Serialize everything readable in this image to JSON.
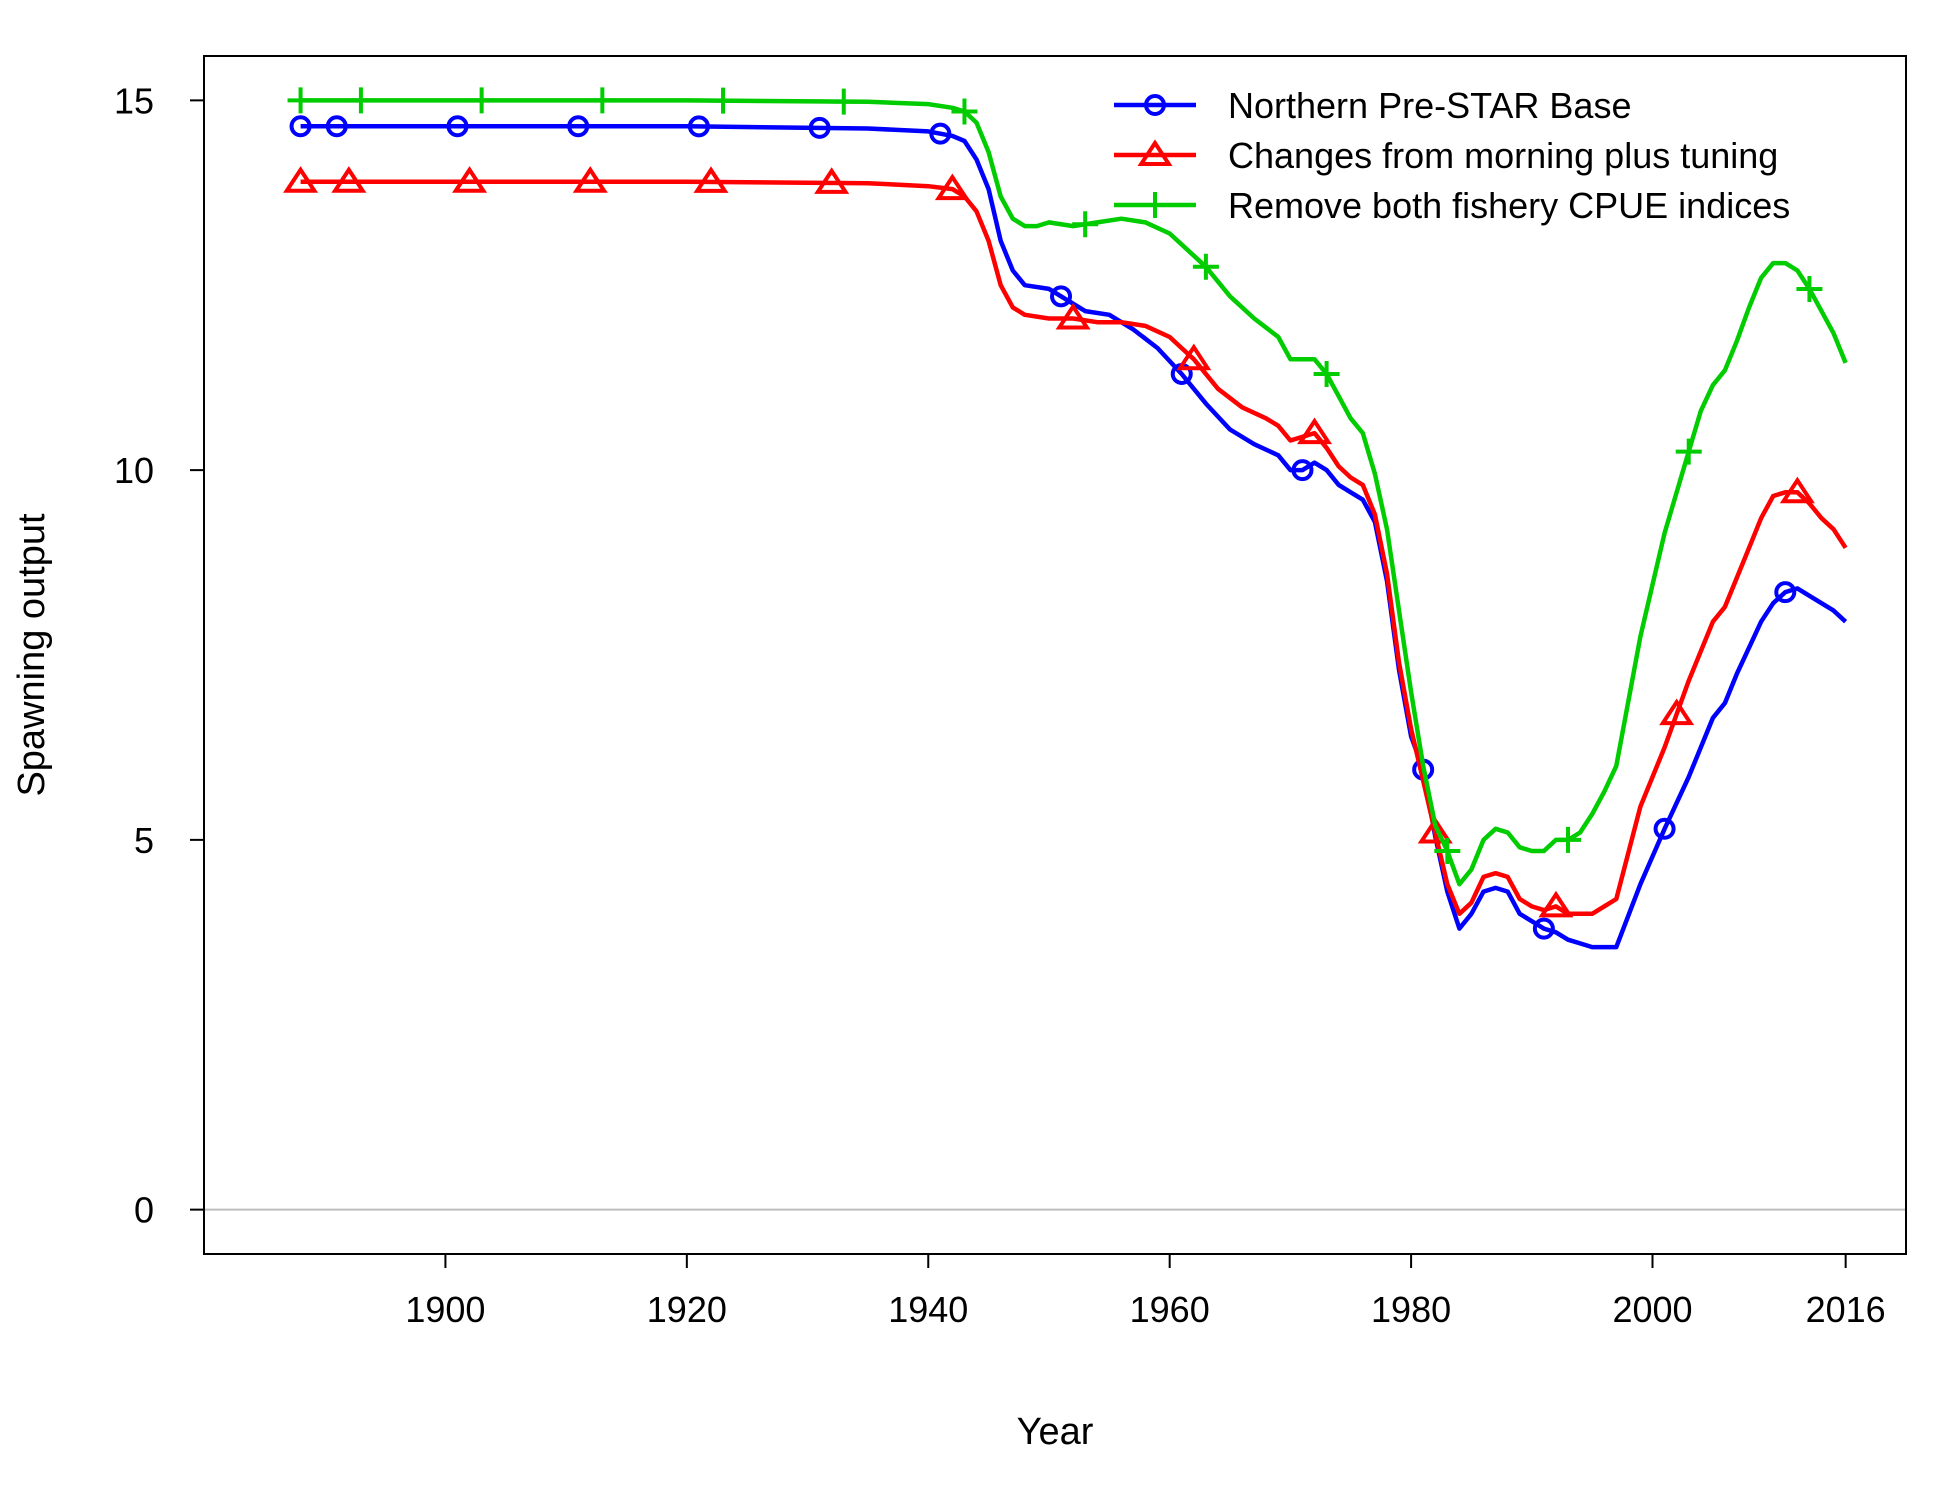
{
  "chart_data": {
    "type": "line",
    "xlabel": "Year",
    "ylabel": "Spawning output",
    "xlim": [
      1880,
      2021
    ],
    "ylim": [
      -0.6,
      15.6
    ],
    "xticks": [
      1900,
      1920,
      1940,
      1960,
      1980,
      2000,
      2016
    ],
    "yticks": [
      0,
      5,
      10,
      15
    ],
    "reference_line_y": 0,
    "legend_position": "top-right",
    "series": [
      {
        "name": "Northern Pre-STAR Base",
        "color": "#0000ff",
        "marker": "circle",
        "markers_at": [
          1888,
          1891,
          1901,
          1911,
          1921,
          1931,
          1941,
          1951,
          1961,
          1971,
          1981,
          1991,
          2001,
          2011
        ],
        "x": [
          1888,
          1900,
          1920,
          1935,
          1940,
          1942,
          1943,
          1944,
          1945,
          1946,
          1947,
          1948,
          1950,
          1951,
          1953,
          1955,
          1957,
          1959,
          1961,
          1963,
          1965,
          1967,
          1969,
          1970,
          1971,
          1972,
          1973,
          1974,
          1975,
          1976,
          1977,
          1978,
          1979,
          1980,
          1981,
          1982,
          1983,
          1984,
          1985,
          1986,
          1987,
          1988,
          1989,
          1990,
          1991,
          1992,
          1993,
          1994,
          1995,
          1996,
          1997,
          1999,
          2001,
          2003,
          2005,
          2006,
          2007,
          2008,
          2009,
          2010,
          2011,
          2012,
          2013,
          2014,
          2015,
          2016
        ],
        "values": [
          14.65,
          14.65,
          14.65,
          14.62,
          14.58,
          14.52,
          14.45,
          14.2,
          13.8,
          13.1,
          12.7,
          12.5,
          12.45,
          12.35,
          12.15,
          12.1,
          11.9,
          11.65,
          11.3,
          10.9,
          10.55,
          10.35,
          10.2,
          10.0,
          10.0,
          10.1,
          10.0,
          9.8,
          9.7,
          9.6,
          9.3,
          8.5,
          7.3,
          6.4,
          5.95,
          5.05,
          4.3,
          3.8,
          4.0,
          4.3,
          4.35,
          4.3,
          4.0,
          3.9,
          3.8,
          3.75,
          3.65,
          3.6,
          3.55,
          3.55,
          3.55,
          4.4,
          5.15,
          5.85,
          6.65,
          6.85,
          7.25,
          7.6,
          7.95,
          8.2,
          8.35,
          8.4,
          8.3,
          8.2,
          8.1,
          7.95
        ]
      },
      {
        "name": "Changes from morning plus tuning",
        "color": "#ff0000",
        "marker": "triangle",
        "markers_at": [
          1888,
          1892,
          1902,
          1912,
          1922,
          1932,
          1942,
          1952,
          1962,
          1972,
          1982,
          1992,
          2002,
          2012
        ],
        "x": [
          1888,
          1900,
          1920,
          1935,
          1940,
          1942,
          1943,
          1944,
          1945,
          1946,
          1947,
          1948,
          1950,
          1952,
          1954,
          1956,
          1958,
          1960,
          1961,
          1962,
          1964,
          1966,
          1968,
          1969,
          1970,
          1971,
          1972,
          1973,
          1974,
          1975,
          1976,
          1977,
          1978,
          1979,
          1980,
          1981,
          1982,
          1983,
          1984,
          1985,
          1986,
          1987,
          1988,
          1989,
          1990,
          1991,
          1992,
          1993,
          1994,
          1995,
          1996,
          1997,
          1999,
          2001,
          2003,
          2005,
          2006,
          2007,
          2008,
          2009,
          2010,
          2011,
          2012,
          2013,
          2014,
          2015,
          2016
        ],
        "values": [
          13.9,
          13.9,
          13.9,
          13.88,
          13.84,
          13.8,
          13.7,
          13.5,
          13.1,
          12.5,
          12.2,
          12.1,
          12.05,
          12.05,
          12.0,
          12.0,
          11.95,
          11.8,
          11.65,
          11.5,
          11.1,
          10.85,
          10.7,
          10.6,
          10.4,
          10.45,
          10.5,
          10.3,
          10.05,
          9.9,
          9.8,
          9.4,
          8.6,
          7.4,
          6.5,
          5.8,
          5.1,
          4.4,
          4.0,
          4.15,
          4.5,
          4.55,
          4.5,
          4.2,
          4.1,
          4.05,
          4.1,
          4.0,
          4.0,
          4.0,
          4.1,
          4.2,
          5.45,
          6.25,
          7.15,
          7.95,
          8.15,
          8.55,
          8.95,
          9.35,
          9.65,
          9.7,
          9.7,
          9.55,
          9.35,
          9.2,
          8.95
        ]
      },
      {
        "name": "Remove both fishery CPUE indices",
        "color": "#00cc00",
        "marker": "plus",
        "markers_at": [
          1888,
          1893,
          1903,
          1913,
          1923,
          1933,
          1943,
          1953,
          1963,
          1973,
          1983,
          1993,
          2003,
          2013
        ],
        "x": [
          1888,
          1900,
          1920,
          1935,
          1940,
          1942,
          1943,
          1944,
          1945,
          1946,
          1947,
          1948,
          1949,
          1950,
          1952,
          1954,
          1956,
          1958,
          1960,
          1962,
          1963,
          1965,
          1967,
          1969,
          1970,
          1972,
          1973,
          1974,
          1975,
          1976,
          1977,
          1978,
          1979,
          1980,
          1981,
          1982,
          1983,
          1984,
          1985,
          1986,
          1987,
          1988,
          1989,
          1990,
          1991,
          1992,
          1993,
          1994,
          1995,
          1996,
          1997,
          1999,
          2001,
          2003,
          2004,
          2005,
          2006,
          2007,
          2008,
          2009,
          2010,
          2011,
          2012,
          2013,
          2014,
          2015,
          2016
        ],
        "values": [
          15.0,
          15.0,
          15.0,
          14.98,
          14.95,
          14.9,
          14.85,
          14.7,
          14.3,
          13.7,
          13.4,
          13.3,
          13.3,
          13.35,
          13.3,
          13.35,
          13.4,
          13.35,
          13.2,
          12.9,
          12.75,
          12.35,
          12.05,
          11.8,
          11.5,
          11.5,
          11.3,
          11.0,
          10.7,
          10.5,
          9.95,
          9.2,
          8.1,
          7.0,
          6.0,
          5.2,
          4.85,
          4.4,
          4.6,
          5.0,
          5.15,
          5.1,
          4.9,
          4.85,
          4.85,
          5.0,
          5.0,
          5.1,
          5.35,
          5.65,
          6.0,
          7.75,
          9.15,
          10.25,
          10.8,
          11.15,
          11.35,
          11.75,
          12.2,
          12.6,
          12.8,
          12.8,
          12.7,
          12.45,
          12.15,
          11.85,
          11.45
        ]
      }
    ]
  }
}
